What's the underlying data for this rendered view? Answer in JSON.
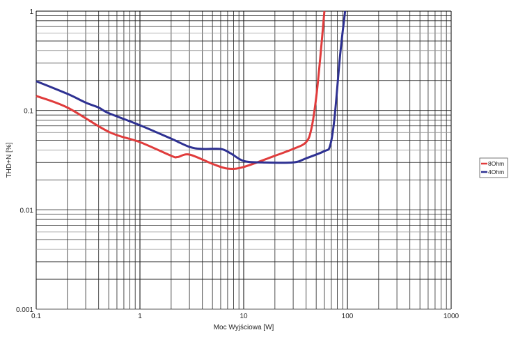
{
  "chart_data": {
    "type": "line",
    "title": "",
    "xlabel": "Moc Wyjściowa [W]",
    "ylabel": "THD+N [%]",
    "xscale": "log",
    "yscale": "log",
    "xlim": [
      0.1,
      1000
    ],
    "ylim": [
      0.001,
      1
    ],
    "x_ticks": [
      "0.1",
      "1",
      "10",
      "100",
      "1000"
    ],
    "y_ticks": [
      "0.001",
      "0.01",
      "0.1",
      "1"
    ],
    "grid": true,
    "legend_position": "right",
    "series": [
      {
        "name": "8Ohm",
        "color": "#e03c3c",
        "x": [
          0.1,
          0.2,
          0.5,
          1,
          2,
          2.3,
          3,
          5,
          7,
          10,
          20,
          30,
          40,
          45,
          50,
          55,
          60
        ],
        "y": [
          0.14,
          0.107,
          0.061,
          0.048,
          0.035,
          0.034,
          0.036,
          0.029,
          0.026,
          0.027,
          0.035,
          0.041,
          0.048,
          0.066,
          0.135,
          0.36,
          1.0
        ]
      },
      {
        "name": "4Ohm",
        "color": "#2e3192",
        "x": [
          0.1,
          0.2,
          0.3,
          0.4,
          0.5,
          1,
          2,
          3,
          4,
          6,
          7.5,
          10,
          15,
          30,
          40,
          60,
          68,
          75,
          85,
          95
        ],
        "y": [
          0.197,
          0.147,
          0.12,
          0.107,
          0.094,
          0.071,
          0.052,
          0.043,
          0.041,
          0.041,
          0.037,
          0.031,
          0.03,
          0.03,
          0.033,
          0.039,
          0.044,
          0.083,
          0.36,
          1.0
        ]
      }
    ]
  }
}
